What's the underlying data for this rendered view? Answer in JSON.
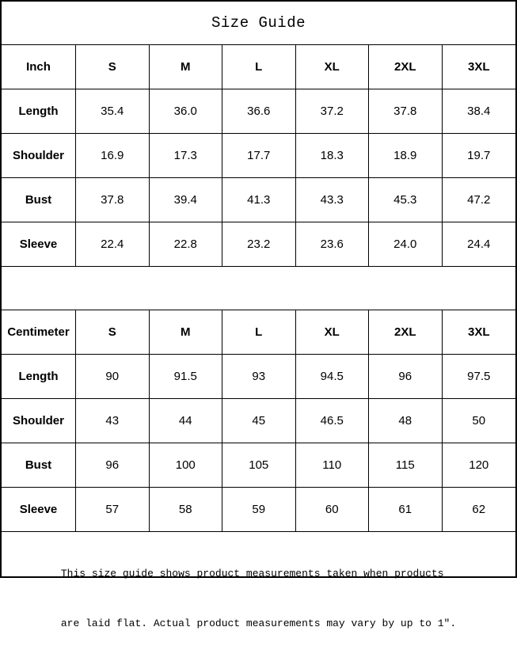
{
  "title": "Size Guide",
  "tables": [
    {
      "unit": "Inch",
      "columns": [
        "S",
        "M",
        "L",
        "XL",
        "2XL",
        "3XL"
      ],
      "rows": [
        {
          "label": "Length",
          "values": [
            "35.4",
            "36.0",
            "36.6",
            "37.2",
            "37.8",
            "38.4"
          ]
        },
        {
          "label": "Shoulder",
          "values": [
            "16.9",
            "17.3",
            "17.7",
            "18.3",
            "18.9",
            "19.7"
          ]
        },
        {
          "label": "Bust",
          "values": [
            "37.8",
            "39.4",
            "41.3",
            "43.3",
            "45.3",
            "47.2"
          ]
        },
        {
          "label": "Sleeve",
          "values": [
            "22.4",
            "22.8",
            "23.2",
            "23.6",
            "24.0",
            "24.4"
          ]
        }
      ]
    },
    {
      "unit": "Centimeter",
      "columns": [
        "S",
        "M",
        "L",
        "XL",
        "2XL",
        "3XL"
      ],
      "rows": [
        {
          "label": "Length",
          "values": [
            "90",
            "91.5",
            "93",
            "94.5",
            "96",
            "97.5"
          ]
        },
        {
          "label": "Shoulder",
          "values": [
            "43",
            "44",
            "45",
            "46.5",
            "48",
            "50"
          ]
        },
        {
          "label": "Bust",
          "values": [
            "96",
            "100",
            "105",
            "110",
            "115",
            "120"
          ]
        },
        {
          "label": "Sleeve",
          "values": [
            "57",
            "58",
            "59",
            "60",
            "61",
            "62"
          ]
        }
      ]
    }
  ],
  "footer": {
    "line1": "This size guide shows product measurements taken when products",
    "line2": "are laid flat. Actual product measurements may vary by up to 1″."
  },
  "colors": {
    "border": "#000000",
    "text": "#000000",
    "background": "#ffffff"
  }
}
